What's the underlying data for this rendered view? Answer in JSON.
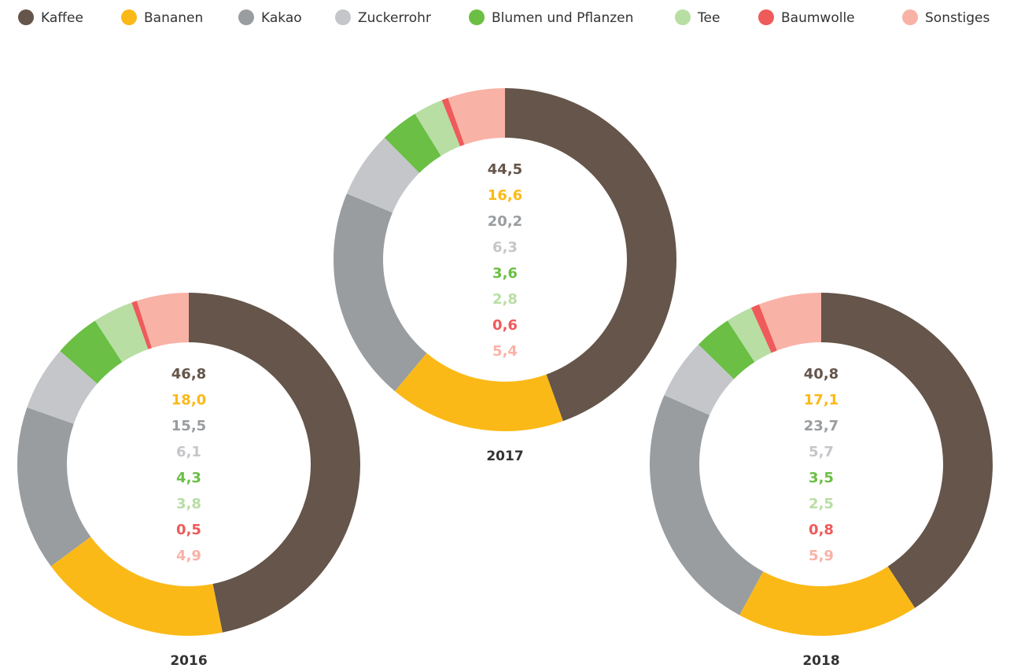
{
  "legend": {
    "categories": [
      "Kaffee",
      "Bananen",
      "Kakao",
      "Zuckerrohr",
      "Blumen und Pflanzen",
      "Tee",
      "Baumwolle",
      "Sonstiges"
    ],
    "colors": [
      "#65554a",
      "#fbb918",
      "#999da0",
      "#c5c6c9",
      "#6abf44",
      "#b8dea4",
      "#ef5a5a",
      "#f9b2a6"
    ]
  },
  "chart_data": [
    {
      "type": "donut",
      "title": "2016",
      "values": [
        46.8,
        18.0,
        15.5,
        6.1,
        4.3,
        3.8,
        0.5,
        4.9
      ],
      "value_labels": [
        "46,8",
        "18,0",
        "15,5",
        "6,1",
        "4,3",
        "3,8",
        "0,5",
        "4,9"
      ]
    },
    {
      "type": "donut",
      "title": "2017",
      "values": [
        44.5,
        16.6,
        20.2,
        6.3,
        3.6,
        2.8,
        0.6,
        5.4
      ],
      "value_labels": [
        "44,5",
        "16,6",
        "20,2",
        "6,3",
        "3,6",
        "2,8",
        "0,6",
        "5,4"
      ]
    },
    {
      "type": "donut",
      "title": "2018",
      "values": [
        40.8,
        17.1,
        23.7,
        5.7,
        3.5,
        2.5,
        0.8,
        5.9
      ],
      "value_labels": [
        "40,8",
        "17,1",
        "23,7",
        "5,7",
        "3,5",
        "2,5",
        "0,8",
        "5,9"
      ]
    }
  ]
}
